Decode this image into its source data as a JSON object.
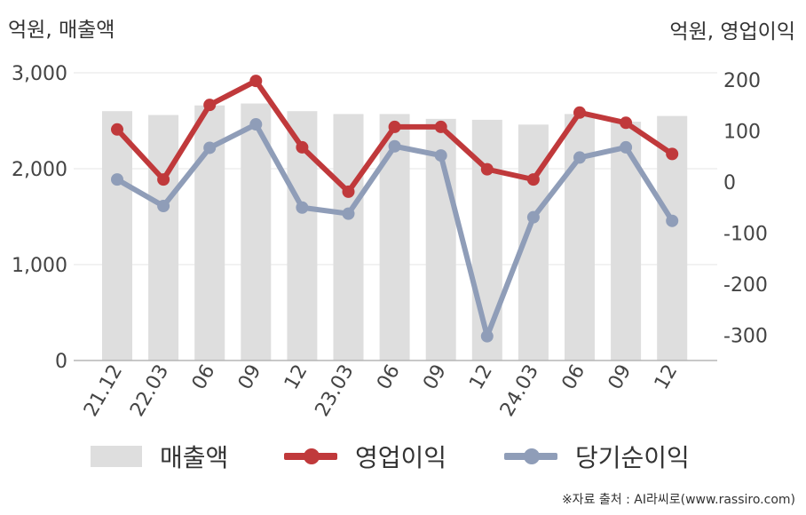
{
  "header": {
    "left_unit": "억원, 매출액",
    "right_unit": "억원, 영업이익"
  },
  "chart_data": {
    "type": "bar+line",
    "categories": [
      "21.12",
      "22.03",
      "06",
      "09",
      "12",
      "23.03",
      "06",
      "09",
      "12",
      "24.03",
      "06",
      "09",
      "12"
    ],
    "left_axis": {
      "ticks": [
        0,
        1000,
        2000,
        3000
      ],
      "tick_labels": [
        "0",
        "1,000",
        "2,000",
        "3,000"
      ],
      "range": [
        0,
        3000
      ]
    },
    "right_axis": {
      "ticks": [
        -300,
        -200,
        -100,
        0,
        100,
        200
      ],
      "tick_labels": [
        "-300",
        "-200",
        "-100",
        "0",
        "100",
        "200"
      ],
      "range": [
        -350,
        210
      ]
    },
    "series": [
      {
        "name": "매출액",
        "kind": "bar",
        "axis": "left",
        "color": "#dedede",
        "values": [
          2600,
          2560,
          2660,
          2680,
          2600,
          2570,
          2570,
          2520,
          2510,
          2460,
          2570,
          2490,
          2550
        ]
      },
      {
        "name": "영업이익",
        "kind": "line",
        "axis": "right",
        "color": "#c0393b",
        "values": [
          103,
          5,
          151,
          198,
          68,
          -19,
          108,
          108,
          25,
          5,
          136,
          116,
          55
        ]
      },
      {
        "name": "당기순이익",
        "kind": "line",
        "axis": "right",
        "color": "#8f9db8",
        "values": [
          5,
          -47,
          67,
          113,
          -50,
          -62,
          70,
          52,
          -302,
          -69,
          48,
          68,
          -76
        ]
      }
    ],
    "legend_position": "bottom",
    "grid": true
  },
  "footer": {
    "source": "※자료 출처 : AI라씨로(www.rassiro.com)"
  }
}
